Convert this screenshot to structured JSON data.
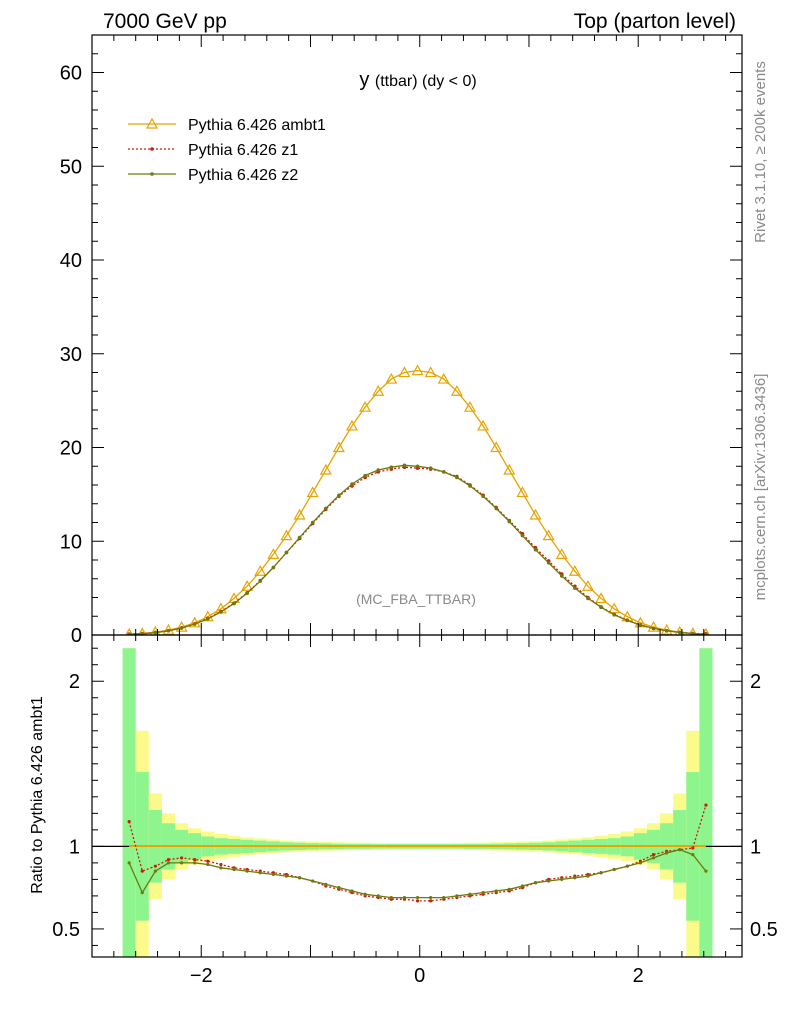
{
  "header": {
    "left": "7000 GeV pp",
    "right": "Top (parton level)"
  },
  "side_text": {
    "rivet": "Rivet 3.1.10, ≥ 200k events",
    "mcplots": "mcplots.cern.ch [arXiv:1306.3436]"
  },
  "chart_data": {
    "type": "line",
    "title_main": "y",
    "title_sub": "(ttbar) (dy < 0)",
    "watermark": "(MC_FBA_TTBAR)",
    "xlabel": "",
    "ylabel_top": "",
    "ylabel_ratio": "Ratio to Pythia 6.426 ambt1",
    "xlim": [
      -3.0,
      2.95
    ],
    "ylim_top": [
      0,
      64
    ],
    "ylim_ratio": [
      0.33,
      2.28
    ],
    "yticks_top": [
      {
        "v": 0,
        "t": "0"
      },
      {
        "v": 10,
        "t": "10"
      },
      {
        "v": 20,
        "t": "20"
      },
      {
        "v": 30,
        "t": "30"
      },
      {
        "v": 40,
        "t": "40"
      },
      {
        "v": 50,
        "t": "50"
      },
      {
        "v": 60,
        "t": "60"
      }
    ],
    "yticks_ratio": [
      {
        "v": 0.5,
        "t": "0.5"
      },
      {
        "v": 1,
        "t": "1"
      },
      {
        "v": 2,
        "t": "2"
      }
    ],
    "xticks": [
      {
        "v": -2,
        "t": "−2"
      },
      {
        "v": 0,
        "t": "0"
      },
      {
        "v": 2,
        "t": "2"
      }
    ],
    "legend_position": "top-left",
    "x": [
      -2.66,
      -2.54,
      -2.42,
      -2.3,
      -2.18,
      -2.06,
      -1.94,
      -1.82,
      -1.7,
      -1.58,
      -1.46,
      -1.34,
      -1.22,
      -1.1,
      -0.98,
      -0.86,
      -0.74,
      -0.62,
      -0.5,
      -0.38,
      -0.26,
      -0.14,
      -0.02,
      0.1,
      0.22,
      0.34,
      0.46,
      0.58,
      0.7,
      0.82,
      0.94,
      1.06,
      1.18,
      1.3,
      1.42,
      1.54,
      1.66,
      1.78,
      1.9,
      2.02,
      2.14,
      2.26,
      2.38,
      2.5,
      2.62
    ],
    "series": [
      {
        "name": "Pythia 6.426 ambt1",
        "color": "#e8a400",
        "marker": "triangle",
        "style": "solid",
        "values": [
          0.09,
          0.17,
          0.31,
          0.52,
          0.84,
          1.3,
          1.95,
          2.8,
          3.9,
          5.2,
          6.8,
          8.6,
          10.6,
          12.8,
          15.2,
          17.6,
          20.0,
          22.3,
          24.3,
          26.0,
          27.3,
          28.0,
          28.2,
          28.0,
          27.3,
          26.0,
          24.3,
          22.3,
          20.0,
          17.6,
          15.2,
          12.8,
          10.6,
          8.6,
          6.8,
          5.2,
          3.9,
          2.8,
          1.95,
          1.3,
          0.84,
          0.52,
          0.31,
          0.17,
          0.09
        ],
        "ratio": [
          1.0,
          1.0,
          1.0,
          1.0,
          1.0,
          1.0,
          1.0,
          1.0,
          1.0,
          1.0,
          1.0,
          1.0,
          1.0,
          1.0,
          1.0,
          1.0,
          1.0,
          1.0,
          1.0,
          1.0,
          1.0,
          1.0,
          1.0,
          1.0,
          1.0,
          1.0,
          1.0,
          1.0,
          1.0,
          1.0,
          1.0,
          1.0,
          1.0,
          1.0,
          1.0,
          1.0,
          1.0,
          1.0,
          1.0,
          1.0,
          1.0,
          1.0,
          1.0,
          1.0,
          1.0
        ]
      },
      {
        "name": "Pythia 6.426 z1",
        "color": "#cc1c0c",
        "marker": "dot",
        "style": "dotted",
        "values": [
          0.1,
          0.15,
          0.27,
          0.46,
          0.76,
          1.18,
          1.77,
          2.5,
          3.4,
          4.5,
          5.8,
          7.2,
          8.8,
          10.3,
          11.9,
          13.4,
          14.8,
          15.9,
          16.8,
          17.4,
          17.7,
          17.9,
          17.8,
          17.7,
          17.4,
          16.9,
          16.0,
          14.9,
          13.6,
          12.2,
          10.8,
          9.3,
          7.9,
          6.5,
          5.2,
          4.0,
          3.0,
          2.2,
          1.58,
          1.07,
          0.7,
          0.44,
          0.27,
          0.16,
          0.13
        ],
        "ratio": [
          1.15,
          0.85,
          0.88,
          0.92,
          0.93,
          0.92,
          0.91,
          0.89,
          0.87,
          0.86,
          0.85,
          0.84,
          0.83,
          0.81,
          0.79,
          0.76,
          0.74,
          0.72,
          0.7,
          0.69,
          0.68,
          0.68,
          0.67,
          0.67,
          0.68,
          0.69,
          0.7,
          0.71,
          0.72,
          0.73,
          0.75,
          0.78,
          0.8,
          0.81,
          0.82,
          0.83,
          0.84,
          0.86,
          0.88,
          0.91,
          0.95,
          0.97,
          0.98,
          0.99,
          1.25
        ]
      },
      {
        "name": "Pythia 6.426 z2",
        "color": "#6e7a0a",
        "marker": "dot",
        "style": "solid",
        "values": [
          0.07,
          0.12,
          0.25,
          0.45,
          0.74,
          1.16,
          1.72,
          2.45,
          3.35,
          4.45,
          5.75,
          7.2,
          8.8,
          10.4,
          12.0,
          13.5,
          14.9,
          16.1,
          17.0,
          17.6,
          17.9,
          18.1,
          18.0,
          17.8,
          17.4,
          16.8,
          15.9,
          14.8,
          13.5,
          12.1,
          10.6,
          9.1,
          7.7,
          6.3,
          5.0,
          3.9,
          2.95,
          2.15,
          1.55,
          1.06,
          0.72,
          0.46,
          0.28,
          0.15,
          0.05
        ],
        "ratio": [
          0.9,
          0.72,
          0.85,
          0.9,
          0.9,
          0.9,
          0.89,
          0.87,
          0.86,
          0.85,
          0.84,
          0.83,
          0.82,
          0.81,
          0.79,
          0.77,
          0.75,
          0.73,
          0.71,
          0.7,
          0.69,
          0.69,
          0.69,
          0.69,
          0.69,
          0.7,
          0.71,
          0.72,
          0.73,
          0.74,
          0.76,
          0.78,
          0.79,
          0.8,
          0.81,
          0.82,
          0.84,
          0.86,
          0.88,
          0.9,
          0.93,
          0.96,
          0.98,
          0.95,
          0.85
        ]
      }
    ],
    "bands": {
      "inner_color": "#8ef58e",
      "outer_color": "#fbfb8c",
      "inner_halfwidth": [
        1.2,
        0.45,
        0.22,
        0.14,
        0.1,
        0.08,
        0.06,
        0.05,
        0.045,
        0.04,
        0.035,
        0.03,
        0.025,
        0.022,
        0.02,
        0.018,
        0.016,
        0.015,
        0.015,
        0.014,
        0.014,
        0.014,
        0.014,
        0.014,
        0.014,
        0.014,
        0.015,
        0.015,
        0.016,
        0.018,
        0.02,
        0.022,
        0.025,
        0.03,
        0.035,
        0.04,
        0.045,
        0.05,
        0.06,
        0.08,
        0.1,
        0.14,
        0.22,
        0.45,
        1.2
      ],
      "outer_halfwidth": [
        1.2,
        0.7,
        0.32,
        0.2,
        0.14,
        0.11,
        0.09,
        0.075,
        0.065,
        0.055,
        0.048,
        0.042,
        0.036,
        0.032,
        0.03,
        0.027,
        0.025,
        0.023,
        0.022,
        0.021,
        0.02,
        0.02,
        0.02,
        0.02,
        0.02,
        0.021,
        0.022,
        0.023,
        0.025,
        0.027,
        0.03,
        0.032,
        0.036,
        0.042,
        0.048,
        0.055,
        0.065,
        0.075,
        0.09,
        0.11,
        0.14,
        0.2,
        0.32,
        0.7,
        1.2
      ]
    }
  }
}
